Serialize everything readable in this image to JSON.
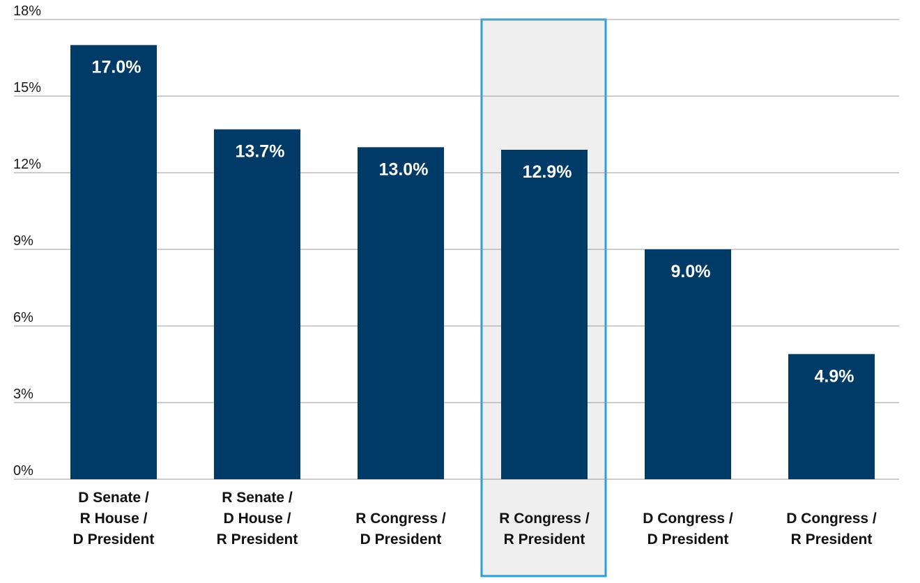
{
  "chart_data": {
    "type": "bar",
    "categories": [
      [
        "D Senate /",
        "R House /",
        "D President"
      ],
      [
        "R Senate /",
        "D House /",
        "R President"
      ],
      [
        "R Congress /",
        "D President"
      ],
      [
        "R Congress /",
        "R President"
      ],
      [
        "D Congress /",
        "D President"
      ],
      [
        "D Congress /",
        "R President"
      ]
    ],
    "values": [
      17.0,
      13.7,
      13.0,
      12.9,
      9.0,
      4.9
    ],
    "value_labels": [
      "17.0%",
      "13.7%",
      "13.0%",
      "12.9%",
      "9.0%",
      "4.9%"
    ],
    "y_ticks": [
      0,
      3,
      6,
      9,
      12,
      15,
      18
    ],
    "y_tick_labels": [
      "0%",
      "3%",
      "6%",
      "9%",
      "12%",
      "15%",
      "18%"
    ],
    "ylim": [
      0,
      18
    ],
    "grid": true,
    "highlighted_category_index": 3,
    "colors": {
      "bar": "#003a66",
      "grid": "#9a9a9a",
      "highlight_fill": "#efeff0",
      "highlight_border": "#2a9fd6"
    }
  }
}
